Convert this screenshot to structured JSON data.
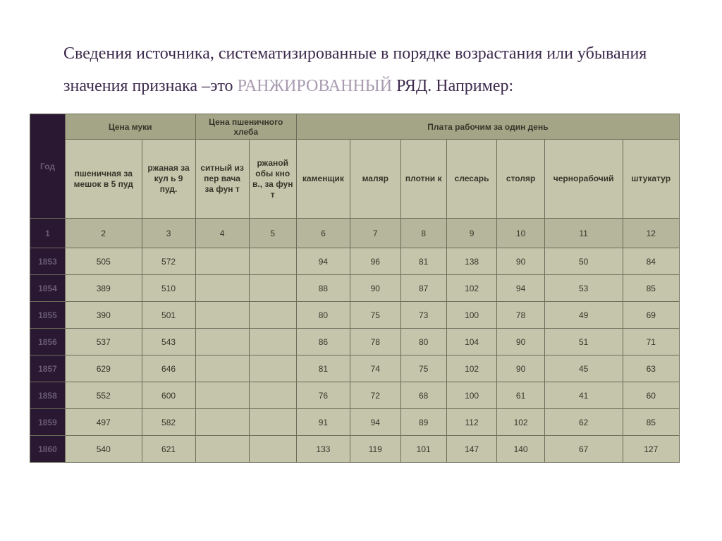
{
  "title": {
    "part1": "Сведения источника, систематизированные в порядке возрастания или убывания значения признака –это ",
    "highlight": "РАНЖИРОВАННЫЙ",
    "part2": " РЯД. Например",
    "colon": ":"
  },
  "groupHeaders": {
    "year": "Год",
    "flourPrice": "Цена муки",
    "breadPrice": "Цена пшеничного хлеба",
    "workerPay": "Плата рабочим за один день"
  },
  "subHeaders": {
    "c1": "пшеничная за мешок в 5 пуд",
    "c2": "ржаная за кул ь 9 пуд.",
    "c3": "ситный из пер вача за фун т",
    "c4": "ржаной обы кно в., за фун т",
    "c5": "каменщик",
    "c6": "маляр",
    "c7": "плотни к",
    "c8": "слесарь",
    "c9": "столяр",
    "c10": "чернорабочий",
    "c11": "штукатур"
  },
  "indexRow": [
    "1",
    "2",
    "3",
    "4",
    "5",
    "6",
    "7",
    "8",
    "9",
    "10",
    "11",
    "12"
  ],
  "rows": [
    {
      "year": "1853",
      "v": [
        "505",
        "572",
        "",
        "",
        "94",
        "96",
        "81",
        "138",
        "90",
        "50",
        "84"
      ]
    },
    {
      "year": "1854",
      "v": [
        "389",
        "510",
        "",
        "",
        "88",
        "90",
        "87",
        "102",
        "94",
        "53",
        "85"
      ]
    },
    {
      "year": "1855",
      "v": [
        "390",
        "501",
        "",
        "",
        "80",
        "75",
        "73",
        "100",
        "78",
        "49",
        "69"
      ]
    },
    {
      "year": "1856",
      "v": [
        "537",
        "543",
        "",
        "",
        "86",
        "78",
        "80",
        "104",
        "90",
        "51",
        "71"
      ]
    },
    {
      "year": "1857",
      "v": [
        "629",
        "646",
        "",
        "",
        "81",
        "74",
        "75",
        "102",
        "90",
        "45",
        "63"
      ]
    },
    {
      "year": "1858",
      "v": [
        "552",
        "600",
        "",
        "",
        "76",
        "72",
        "68",
        "100",
        "61",
        "41",
        "60"
      ]
    },
    {
      "year": "1859",
      "v": [
        "497",
        "582",
        "",
        "",
        "91",
        "94",
        "89",
        "112",
        "102",
        "62",
        "85"
      ]
    },
    {
      "year": "1860",
      "v": [
        "540",
        "621",
        "",
        "",
        "133",
        "119",
        "101",
        "147",
        "140",
        "67",
        "127"
      ]
    }
  ],
  "style": {
    "bg_page": "#ffffff",
    "bg_group": "#a4a586",
    "bg_sub": "#c4c5ab",
    "bg_index": "#b5b69b",
    "bg_data": "#c4c5ab",
    "bg_firstcol": "#2a1832",
    "border": "#6d6d5a",
    "title_color": "#3d2a4d",
    "faded_color": "#a89bb0",
    "firstcol_text": "#6a5b73"
  }
}
